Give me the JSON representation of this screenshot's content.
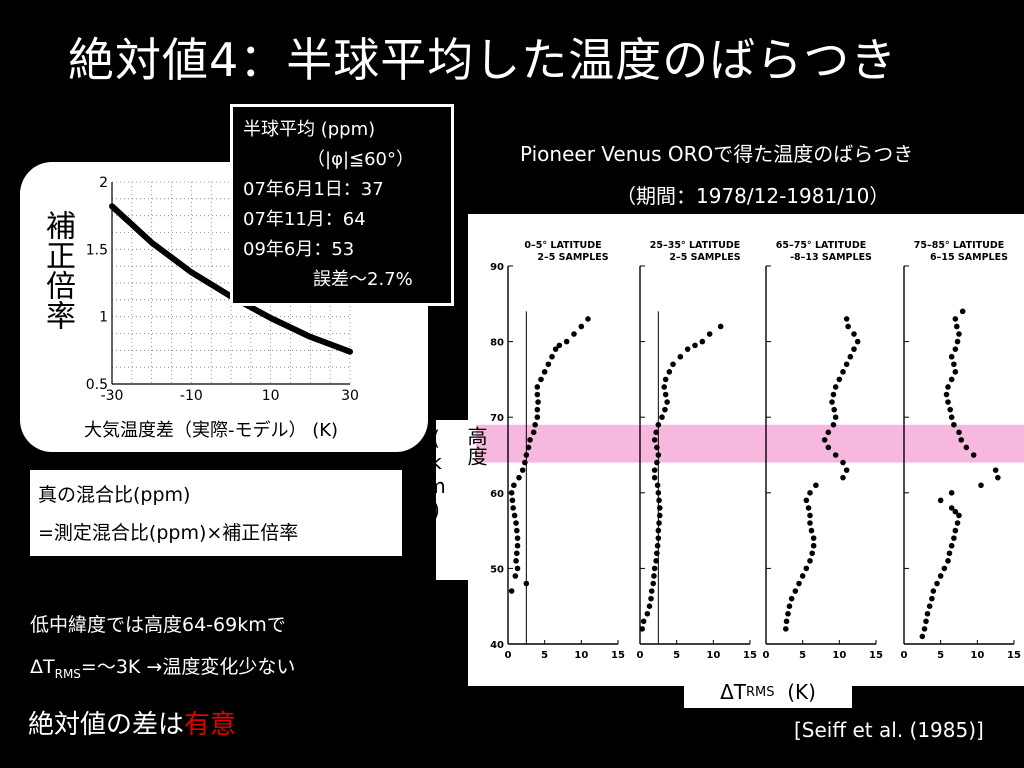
{
  "title": "絶対値4：半球平均した温度のばらつき",
  "correction_chart": {
    "ylabel": "補正倍率",
    "xlabel": "大気温度差（実際-モデル） (K)",
    "x_ticks": [
      "-30",
      "-10",
      "10",
      "30"
    ],
    "y_ticks": [
      "2",
      "1.5",
      "1",
      "0.5"
    ],
    "chart_data": {
      "type": "line",
      "x": [
        -30,
        -20,
        -10,
        0,
        10,
        20,
        30
      ],
      "values": [
        1.82,
        1.55,
        1.33,
        1.15,
        0.99,
        0.85,
        0.74
      ],
      "xlim": [
        -30,
        30
      ],
      "ylim": [
        0.5,
        2
      ],
      "grid": true
    }
  },
  "info_box": {
    "line1": "半球平均 (ppm)",
    "line2": "（|φ|≦60°）",
    "line3": "07年6月1日：37",
    "line4": "07年11月：64",
    "line5": "09年6月：53",
    "line6": "誤差～2.7%"
  },
  "formula": {
    "line1": "真の混合比(ppm)",
    "line2": "=測定混合比(ppm)×補正倍率"
  },
  "figure": {
    "caption1": "Pioneer Venus OROで得た温度のばらつき",
    "caption2": "（期間：1978/12-1981/10）",
    "alt_label": "高度 (km)",
    "dtrms_main": "ΔT",
    "dtrms_sub": "RMS",
    "dtrms_unit": "(K)",
    "y_ticks": [
      "90",
      "80",
      "70",
      "60",
      "50",
      "40"
    ],
    "x_ticks": [
      "0",
      "5",
      "10",
      "15"
    ],
    "highlight_color": "#f7b8e0",
    "panels": [
      {
        "title1": "0–5° LATITUDE",
        "title2": "2–5 SAMPLES",
        "points": [
          [
            10.9,
            83
          ],
          [
            10,
            82
          ],
          [
            9,
            81
          ],
          [
            8,
            80
          ],
          [
            7,
            79.5
          ],
          [
            6.5,
            79
          ],
          [
            6,
            78
          ],
          [
            5.5,
            77
          ],
          [
            5,
            76
          ],
          [
            4.5,
            75
          ],
          [
            4,
            74
          ],
          [
            4,
            73
          ],
          [
            4.1,
            72
          ],
          [
            4,
            71
          ],
          [
            4,
            70
          ],
          [
            3.7,
            69
          ],
          [
            3.5,
            68
          ],
          [
            3,
            67
          ],
          [
            2.8,
            66
          ],
          [
            2.5,
            65
          ],
          [
            2.3,
            64
          ],
          [
            2,
            63
          ],
          [
            1.5,
            62
          ],
          [
            0.8,
            61
          ],
          [
            0.5,
            60
          ],
          [
            0.6,
            59
          ],
          [
            0.7,
            58
          ],
          [
            0.9,
            57
          ],
          [
            1.1,
            56
          ],
          [
            1.2,
            55
          ],
          [
            1.3,
            54
          ],
          [
            1.3,
            53
          ],
          [
            1.2,
            52
          ],
          [
            1.1,
            51
          ],
          [
            1.3,
            50
          ],
          [
            1,
            49
          ],
          [
            2.5,
            48
          ],
          [
            0.5,
            47
          ]
        ]
      },
      {
        "title1": "25–35° LATITUDE",
        "title2": "2–5 SAMPLES",
        "points": [
          [
            11,
            82
          ],
          [
            9.5,
            81
          ],
          [
            8.5,
            80
          ],
          [
            7.5,
            79.5
          ],
          [
            6.5,
            79
          ],
          [
            5.5,
            78
          ],
          [
            4.5,
            77
          ],
          [
            4,
            76
          ],
          [
            3.5,
            75
          ],
          [
            3.3,
            74
          ],
          [
            3.5,
            73
          ],
          [
            3.7,
            72
          ],
          [
            3.4,
            71
          ],
          [
            3,
            70
          ],
          [
            2.5,
            69
          ],
          [
            2.2,
            68
          ],
          [
            2,
            67
          ],
          [
            2.3,
            66
          ],
          [
            2.5,
            65
          ],
          [
            2.3,
            64
          ],
          [
            2,
            63
          ],
          [
            2,
            62
          ],
          [
            2.4,
            61
          ],
          [
            2.5,
            60
          ],
          [
            2.6,
            59
          ],
          [
            2.7,
            58
          ],
          [
            2.7,
            57
          ],
          [
            2.6,
            56
          ],
          [
            2.5,
            55
          ],
          [
            2.5,
            54
          ],
          [
            2.4,
            53
          ],
          [
            2.3,
            52
          ],
          [
            2.2,
            51
          ],
          [
            2,
            50
          ],
          [
            1.9,
            49
          ],
          [
            1.8,
            48
          ],
          [
            1.6,
            47
          ],
          [
            1.5,
            46
          ],
          [
            1.3,
            45
          ],
          [
            1,
            44
          ],
          [
            0.5,
            43
          ],
          [
            0.3,
            42
          ]
        ]
      },
      {
        "title1": "65–75° LATITUDE",
        "title2": "-8–13 SAMPLES",
        "points": [
          [
            11,
            83
          ],
          [
            11.2,
            82
          ],
          [
            12,
            81
          ],
          [
            12.5,
            80
          ],
          [
            12,
            79
          ],
          [
            11.5,
            78
          ],
          [
            11,
            77
          ],
          [
            10.5,
            76
          ],
          [
            10,
            75
          ],
          [
            9.5,
            74
          ],
          [
            9.2,
            73
          ],
          [
            9,
            72
          ],
          [
            9.3,
            71
          ],
          [
            9.5,
            70
          ],
          [
            9.2,
            69
          ],
          [
            8.5,
            68
          ],
          [
            8,
            67
          ],
          [
            8.5,
            66
          ],
          [
            9.5,
            65
          ],
          [
            10.5,
            64
          ],
          [
            11,
            63
          ],
          [
            10.5,
            62
          ],
          [
            6.8,
            61
          ],
          [
            6,
            60
          ],
          [
            5.5,
            59
          ],
          [
            5.8,
            58
          ],
          [
            6,
            57
          ],
          [
            6,
            56
          ],
          [
            6.2,
            55
          ],
          [
            6.5,
            54
          ],
          [
            6.5,
            53
          ],
          [
            6.3,
            52
          ],
          [
            6,
            51
          ],
          [
            5.5,
            50
          ],
          [
            5,
            49
          ],
          [
            4.5,
            48
          ],
          [
            4,
            47
          ],
          [
            3.5,
            46
          ],
          [
            3.2,
            45
          ],
          [
            3,
            44
          ],
          [
            2.8,
            43
          ],
          [
            2.7,
            42
          ]
        ]
      },
      {
        "title1": "75–85° LATITUDE",
        "title2": "6–15 SAMPLES",
        "points": [
          [
            8,
            84
          ],
          [
            7,
            83
          ],
          [
            7.2,
            82
          ],
          [
            7.5,
            81
          ],
          [
            7.3,
            80
          ],
          [
            7,
            79
          ],
          [
            6.5,
            78
          ],
          [
            6.8,
            77
          ],
          [
            7,
            76
          ],
          [
            6.5,
            75
          ],
          [
            6,
            74
          ],
          [
            5.8,
            73
          ],
          [
            6,
            72
          ],
          [
            6.3,
            71
          ],
          [
            6.5,
            70
          ],
          [
            6.8,
            69
          ],
          [
            7.5,
            68
          ],
          [
            7.8,
            67
          ],
          [
            8.5,
            66
          ],
          [
            9.5,
            65
          ],
          [
            12.5,
            63
          ],
          [
            12.8,
            62
          ],
          [
            10.5,
            61
          ],
          [
            6.5,
            60
          ],
          [
            5,
            59
          ],
          [
            6.5,
            58
          ],
          [
            7,
            57.5
          ],
          [
            7.5,
            57
          ],
          [
            7.3,
            56
          ],
          [
            7,
            55
          ],
          [
            6.8,
            54
          ],
          [
            6.5,
            53
          ],
          [
            6.2,
            52
          ],
          [
            6,
            51
          ],
          [
            5.5,
            50
          ],
          [
            5,
            49
          ],
          [
            4.5,
            48
          ],
          [
            4,
            47
          ],
          [
            3.8,
            46
          ],
          [
            3.5,
            45
          ],
          [
            3.2,
            44
          ],
          [
            3,
            43
          ],
          [
            2.8,
            42
          ],
          [
            2.5,
            41
          ]
        ]
      }
    ]
  },
  "notes": {
    "line1": "低中緯度では高度64-69kmで",
    "line2_pre": "ΔT",
    "line2_sub": "RMS",
    "line2_post": "=～3K  →温度変化少ない"
  },
  "conclusion": {
    "text_pre": "絶対値の差は",
    "text_accent": "有意"
  },
  "citation": "[Seiff et al. (1985)]"
}
